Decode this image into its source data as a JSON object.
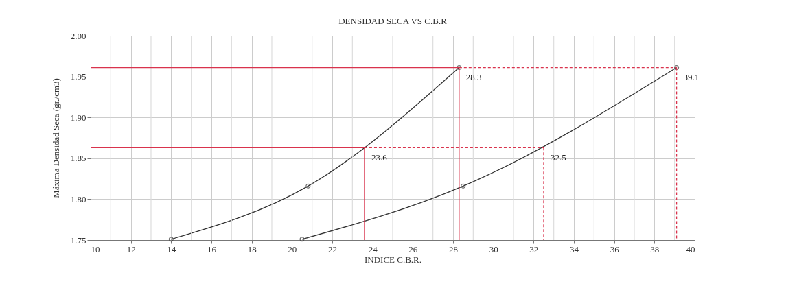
{
  "chart_data": {
    "type": "line",
    "title": "DENSIDAD SECA VS C.B.R",
    "xlabel": "INDICE C.B.R.",
    "ylabel": "Máxima Densidad Seca (gr./cm3)",
    "xlim": [
      10,
      40
    ],
    "xticks": [
      10,
      12,
      14,
      16,
      18,
      20,
      22,
      24,
      26,
      28,
      30,
      32,
      34,
      36,
      38,
      40
    ],
    "ylim": [
      1.75,
      2.0
    ],
    "yticks": [
      {
        "value": 1.75,
        "label": "1.75"
      },
      {
        "value": 1.8,
        "label": "1.80"
      },
      {
        "value": 1.85,
        "label": "1.85"
      },
      {
        "value": 1.9,
        "label": "1.90"
      },
      {
        "value": 1.95,
        "label": "1.95"
      },
      {
        "value": 2.0,
        "label": "2.00"
      }
    ],
    "grid": true,
    "legend": false,
    "series": [
      {
        "color": "#333333",
        "marker": "circle",
        "line_style": "solid",
        "x": [
          14,
          20.8,
          28.3
        ],
        "values": [
          1.751,
          1.816,
          1.961
        ]
      },
      {
        "color": "#333333",
        "marker": "circle",
        "line_style": "solid",
        "x": [
          20.5,
          28.5,
          39.1
        ],
        "values": [
          1.751,
          1.816,
          1.961
        ]
      },
      {
        "color": "#d9334d",
        "marker": "none",
        "line_style": "solid",
        "x": [
          10,
          28.3
        ],
        "values": [
          1.961,
          1.961
        ]
      },
      {
        "color": "#d9334d",
        "marker": "none",
        "line_style": "dashed",
        "x": [
          28.3,
          39.1
        ],
        "values": [
          1.961,
          1.961
        ]
      },
      {
        "color": "#d9334d",
        "marker": "none",
        "line_style": "solid",
        "x": [
          10,
          23.6
        ],
        "values": [
          1.863,
          1.863
        ]
      },
      {
        "color": "#d9334d",
        "marker": "none",
        "line_style": "dashed",
        "x": [
          23.6,
          32.5
        ],
        "values": [
          1.863,
          1.863
        ]
      },
      {
        "color": "#d9334d",
        "marker": "none",
        "line_style": "solid",
        "x": [
          23.6,
          23.6
        ],
        "values": [
          1.863,
          1.75
        ]
      },
      {
        "color": "#d9334d",
        "marker": "none",
        "line_style": "solid",
        "x": [
          28.3,
          28.3
        ],
        "values": [
          1.961,
          1.75
        ]
      },
      {
        "color": "#d9334d",
        "marker": "none",
        "line_style": "dashed",
        "x": [
          32.5,
          32.5
        ],
        "values": [
          1.863,
          1.75
        ]
      },
      {
        "color": "#d9334d",
        "marker": "none",
        "line_style": "dashed",
        "x": [
          39.1,
          39.1
        ],
        "values": [
          1.961,
          1.75
        ]
      }
    ],
    "annotations": [
      {
        "text": "28.3",
        "x": 28.3,
        "y": 1.961
      },
      {
        "text": "39.1",
        "x": 39.1,
        "y": 1.961
      },
      {
        "text": "23.6",
        "x": 23.6,
        "y": 1.863
      },
      {
        "text": "32.5",
        "x": 32.5,
        "y": 1.863
      }
    ]
  }
}
